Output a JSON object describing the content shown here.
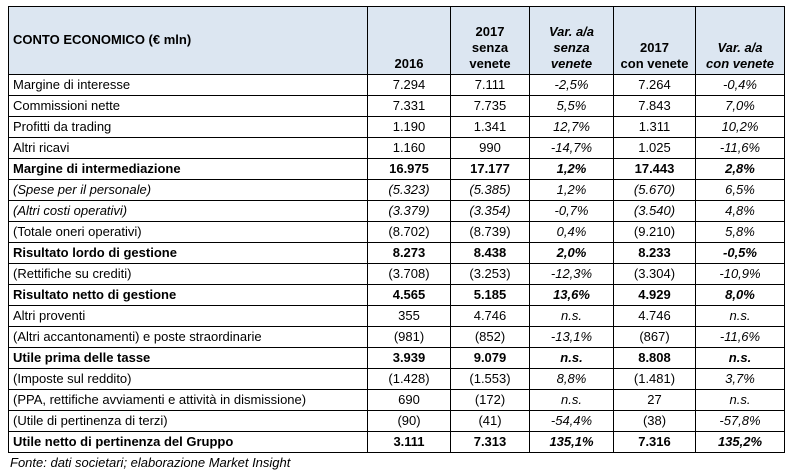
{
  "table": {
    "header": [
      [
        "CONTO ECONOMICO (€ mln)"
      ],
      [
        "2016"
      ],
      [
        "2017",
        "senza",
        "venete"
      ],
      [
        "Var. a/a",
        "senza",
        "venete"
      ],
      [
        "2017",
        "con venete"
      ],
      [
        "Var. a/a",
        "con venete"
      ]
    ],
    "italic_columns": [
      3,
      5
    ],
    "rows": [
      {
        "cells": [
          "Margine di interesse",
          "7.294",
          "7.111",
          "-2,5%",
          "7.264",
          "-0,4%"
        ],
        "style": "normal"
      },
      {
        "cells": [
          "Commissioni nette",
          "7.331",
          "7.735",
          "5,5%",
          "7.843",
          "7,0%"
        ],
        "style": "normal"
      },
      {
        "cells": [
          "Profitti da trading",
          "1.190",
          "1.341",
          "12,7%",
          "1.311",
          "10,2%"
        ],
        "style": "normal"
      },
      {
        "cells": [
          "Altri ricavi",
          "1.160",
          "990",
          "-14,7%",
          "1.025",
          "-11,6%"
        ],
        "style": "normal"
      },
      {
        "cells": [
          "Margine di intermediazione",
          "16.975",
          "17.177",
          "1,2%",
          "17.443",
          "2,8%"
        ],
        "style": "bold"
      },
      {
        "cells": [
          "(Spese per il personale)",
          "(5.323)",
          "(5.385)",
          "1,2%",
          "(5.670)",
          "6,5%"
        ],
        "style": "italic"
      },
      {
        "cells": [
          "(Altri costi operativi)",
          "(3.379)",
          "(3.354)",
          "-0,7%",
          "(3.540)",
          "4,8%"
        ],
        "style": "italic"
      },
      {
        "cells": [
          "(Totale oneri operativi)",
          "(8.702)",
          "(8.739)",
          "0,4%",
          "(9.210)",
          "5,8%"
        ],
        "style": "normal"
      },
      {
        "cells": [
          "Risultato lordo di gestione",
          "8.273",
          "8.438",
          "2,0%",
          "8.233",
          "-0,5%"
        ],
        "style": "bold"
      },
      {
        "cells": [
          "(Rettifiche su crediti)",
          "(3.708)",
          "(3.253)",
          "-12,3%",
          "(3.304)",
          "-10,9%"
        ],
        "style": "normal"
      },
      {
        "cells": [
          "Risultato netto di gestione",
          "4.565",
          "5.185",
          "13,6%",
          "4.929",
          "8,0%"
        ],
        "style": "bold"
      },
      {
        "cells": [
          "Altri proventi",
          "355",
          "4.746",
          "n.s.",
          "4.746",
          "n.s."
        ],
        "style": "normal"
      },
      {
        "cells": [
          "(Altri accantonamenti) e poste straordinarie",
          "(981)",
          "(852)",
          "-13,1%",
          "(867)",
          "-11,6%"
        ],
        "style": "normal"
      },
      {
        "cells": [
          "Utile prima delle tasse",
          "3.939",
          "9.079",
          "n.s.",
          "8.808",
          "n.s."
        ],
        "style": "bold"
      },
      {
        "cells": [
          "(Imposte sul reddito)",
          "(1.428)",
          "(1.553)",
          "8,8%",
          "(1.481)",
          "3,7%"
        ],
        "style": "normal"
      },
      {
        "cells": [
          "(PPA, rettifiche avviamenti e attività in dismissione)",
          "690",
          "(172)",
          "n.s.",
          "27",
          "n.s."
        ],
        "style": "normal"
      },
      {
        "cells": [
          "(Utile di pertinenza di terzi)",
          "(90)",
          "(41)",
          "-54,4%",
          "(38)",
          "-57,8%"
        ],
        "style": "normal"
      },
      {
        "cells": [
          "Utile netto di pertinenza del Gruppo",
          "3.111",
          "7.313",
          "135,1%",
          "7.316",
          "135,2%"
        ],
        "style": "bold"
      }
    ]
  },
  "footer": {
    "source": "Fonte: dati societari; elaborazione Market Insight"
  }
}
